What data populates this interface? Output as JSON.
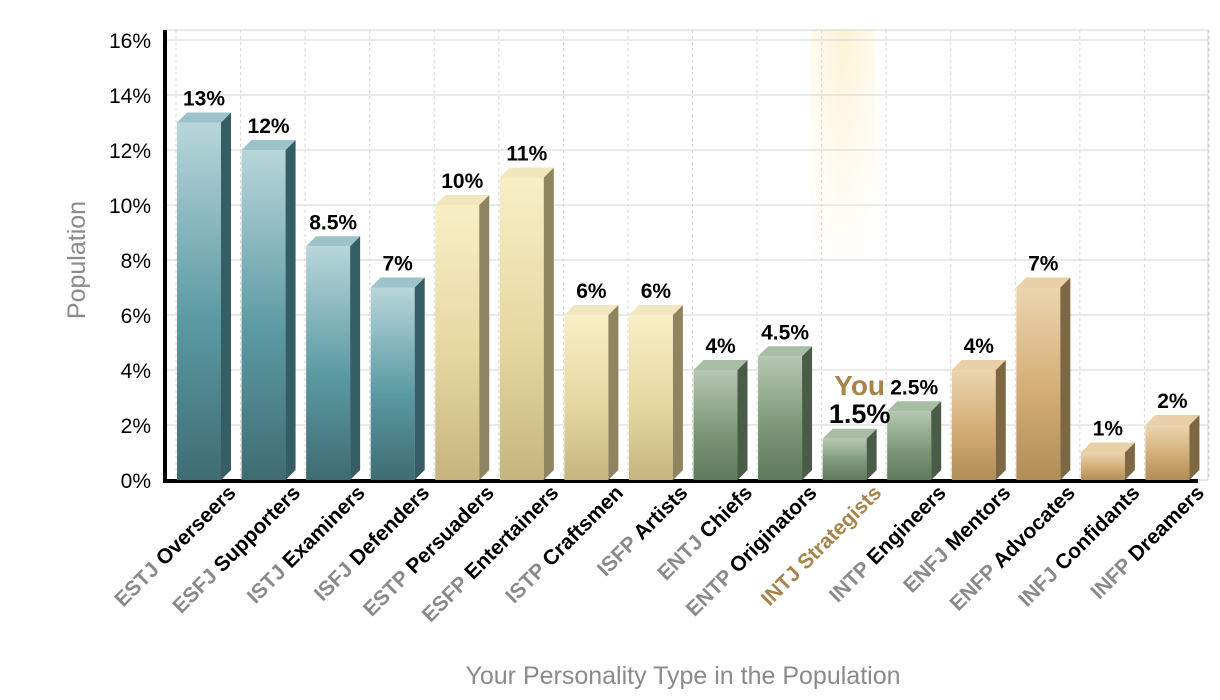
{
  "chart_data": {
    "type": "bar",
    "xlabel": "Your Personality Type in the Population",
    "ylabel": "Population",
    "ylim": [
      0,
      16
    ],
    "yticks": [
      "0%",
      "2%",
      "4%",
      "6%",
      "8%",
      "10%",
      "12%",
      "14%",
      "16%"
    ],
    "grid": true,
    "highlight_label": "You",
    "highlight_index": 10,
    "categories": [
      {
        "code": "ESTJ",
        "name": "Overseers",
        "value": 13,
        "label": "13%",
        "group": "teal"
      },
      {
        "code": "ESFJ",
        "name": "Supporters",
        "value": 12,
        "label": "12%",
        "group": "teal"
      },
      {
        "code": "ISTJ",
        "name": "Examiners",
        "value": 8.5,
        "label": "8.5%",
        "group": "teal"
      },
      {
        "code": "ISFJ",
        "name": "Defenders",
        "value": 7,
        "label": "7%",
        "group": "teal"
      },
      {
        "code": "ESTP",
        "name": "Persuaders",
        "value": 10,
        "label": "10%",
        "group": "cream"
      },
      {
        "code": "ESFP",
        "name": "Entertainers",
        "value": 11,
        "label": "11%",
        "group": "cream"
      },
      {
        "code": "ISTP",
        "name": "Craftsmen",
        "value": 6,
        "label": "6%",
        "group": "cream"
      },
      {
        "code": "ISFP",
        "name": "Artists",
        "value": 6,
        "label": "6%",
        "group": "cream"
      },
      {
        "code": "ENTJ",
        "name": "Chiefs",
        "value": 4,
        "label": "4%",
        "group": "green"
      },
      {
        "code": "ENTP",
        "name": "Originators",
        "value": 4.5,
        "label": "4.5%",
        "group": "green"
      },
      {
        "code": "INTJ",
        "name": "Strategists",
        "value": 1.5,
        "label": "1.5%",
        "group": "green"
      },
      {
        "code": "INTP",
        "name": "Engineers",
        "value": 2.5,
        "label": "2.5%",
        "group": "green"
      },
      {
        "code": "ENFJ",
        "name": "Mentors",
        "value": 4,
        "label": "4%",
        "group": "tan"
      },
      {
        "code": "ENFP",
        "name": "Advocates",
        "value": 7,
        "label": "7%",
        "group": "tan"
      },
      {
        "code": "INFJ",
        "name": "Confidants",
        "value": 1,
        "label": "1%",
        "group": "tan"
      },
      {
        "code": "INFP",
        "name": "Dreamers",
        "value": 2,
        "label": "2%",
        "group": "tan"
      }
    ],
    "colors": {
      "teal": {
        "light": "#b9d6da",
        "main": "#5b9aa4",
        "dark": "#3f6c73",
        "top": "#9cc3c9",
        "side": "#365d63"
      },
      "cream": {
        "light": "#f8efc6",
        "main": "#e6d7a0",
        "dark": "#c6b47f",
        "top": "#f1e6bd",
        "side": "#8e8560"
      },
      "green": {
        "light": "#b7c7b2",
        "main": "#7d9978",
        "dark": "#5e7a5c",
        "top": "#a9bca4",
        "side": "#4a5c47"
      },
      "tan": {
        "light": "#ecd5b1",
        "main": "#d3ad74",
        "dark": "#b08d58",
        "top": "#e9d0a8",
        "side": "#7e6743"
      },
      "highlight": "#a8834a"
    }
  }
}
